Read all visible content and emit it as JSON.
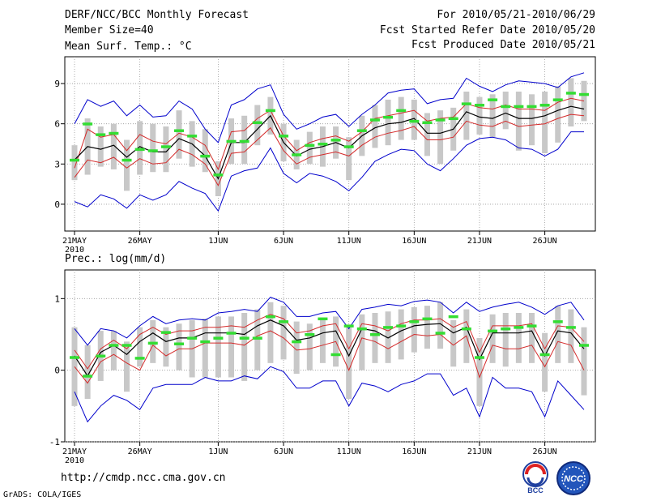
{
  "header": {
    "title": "DERF/NCC/BCC Monthly Forecast",
    "member_size": "Member Size=40",
    "forecast_range": "For 2010/05/21-2010/06/29",
    "start_date": "Fcst Started Refer Date 2010/05/20",
    "produced_date": "Fcst Produced Date 2010/05/21"
  },
  "footer": {
    "url": "http://cmdp.ncc.cma.gov.cn",
    "grads_credit": "GrADS: COLA/IGES",
    "logo_left_text": "BCC",
    "logo_right_text": "NCC"
  },
  "colors": {
    "envelope": "#0000cc",
    "spread": "#d42a2a",
    "mean": "#000000",
    "box": "#c8c8c8",
    "marker": "#33dd33"
  },
  "chart_data": [
    {
      "type": "line",
      "title": "Mean Surf. Temp.: °C",
      "x_tick_labels": [
        "21MAY",
        "26MAY",
        "1JUN",
        "6JUN",
        "11JUN",
        "16JUN",
        "21JUN",
        "26JUN"
      ],
      "x_year_label": "2010",
      "days": 40,
      "ylim": [
        -2,
        11
      ],
      "yticks": [
        0,
        3,
        6,
        9
      ],
      "series": [
        {
          "name": "max",
          "values": [
            6.0,
            7.8,
            7.3,
            7.7,
            6.6,
            7.4,
            6.5,
            6.6,
            7.7,
            7.1,
            5.6,
            4.6,
            7.4,
            7.8,
            8.6,
            8.9,
            6.7,
            5.6,
            6.0,
            6.5,
            6.7,
            5.8,
            6.7,
            7.4,
            8.3,
            8.5,
            8.6,
            7.5,
            7.8,
            7.9,
            9.4,
            8.8,
            8.4,
            8.9,
            9.2,
            9.1,
            9.0,
            8.7,
            9.5,
            9.8
          ]
        },
        {
          "name": "upper",
          "values": [
            2.7,
            5.6,
            5.0,
            5.2,
            4.0,
            5.2,
            4.7,
            4.5,
            5.3,
            5.0,
            4.4,
            2.6,
            5.4,
            5.5,
            6.4,
            7.0,
            5.1,
            4.0,
            4.6,
            4.9,
            5.1,
            4.7,
            5.4,
            6.4,
            6.6,
            6.8,
            7.0,
            6.2,
            6.4,
            6.5,
            7.5,
            7.2,
            7.1,
            7.4,
            7.1,
            7.1,
            7.0,
            7.6,
            7.9,
            7.7
          ]
        },
        {
          "name": "mean",
          "values": [
            3.3,
            4.3,
            4.1,
            4.4,
            3.5,
            4.3,
            3.9,
            3.9,
            4.9,
            4.5,
            3.6,
            1.9,
            4.6,
            4.6,
            5.6,
            6.6,
            4.6,
            3.6,
            4.1,
            4.3,
            4.6,
            4.2,
            5.1,
            5.7,
            6.0,
            6.1,
            6.4,
            5.3,
            5.3,
            5.6,
            6.9,
            6.5,
            6.4,
            6.8,
            6.4,
            6.4,
            6.6,
            7.0,
            7.3,
            7.1
          ]
        },
        {
          "name": "lower",
          "values": [
            2.0,
            3.3,
            3.1,
            3.5,
            2.7,
            3.4,
            3.0,
            3.1,
            4.1,
            3.7,
            3.0,
            1.4,
            3.8,
            3.9,
            4.8,
            5.7,
            4.0,
            3.0,
            3.5,
            3.7,
            3.9,
            3.6,
            4.4,
            5.0,
            5.3,
            5.5,
            5.8,
            4.8,
            4.8,
            5.0,
            6.2,
            5.9,
            5.8,
            6.2,
            5.8,
            5.9,
            6.0,
            6.4,
            6.7,
            6.6
          ]
        },
        {
          "name": "min",
          "values": [
            0.2,
            -0.2,
            0.7,
            0.4,
            -0.3,
            0.7,
            0.3,
            0.7,
            1.7,
            1.2,
            0.8,
            -0.5,
            2.1,
            2.5,
            2.7,
            4.2,
            2.3,
            1.6,
            2.3,
            2.1,
            1.7,
            1.0,
            2.0,
            3.2,
            3.7,
            4.1,
            4.0,
            3.0,
            2.5,
            3.4,
            4.4,
            4.9,
            5.0,
            4.8,
            4.2,
            4.1,
            3.6,
            4.1,
            5.4,
            5.4
          ]
        },
        {
          "name": "box_top",
          "values": [
            4.4,
            6.4,
            5.8,
            6.0,
            4.8,
            6.2,
            6.0,
            5.8,
            7.0,
            6.2,
            5.6,
            3.2,
            6.4,
            6.6,
            7.4,
            8.0,
            6.0,
            4.8,
            5.4,
            5.8,
            5.8,
            5.0,
            6.6,
            7.4,
            7.8,
            8.0,
            7.8,
            6.8,
            7.0,
            7.2,
            8.4,
            8.0,
            8.2,
            8.4,
            8.4,
            8.2,
            8.4,
            8.8,
            9.4,
            9.2
          ]
        },
        {
          "name": "box_bottom",
          "values": [
            1.8,
            2.2,
            2.8,
            2.6,
            1.0,
            2.2,
            2.4,
            2.4,
            3.4,
            2.8,
            2.4,
            0.6,
            3.0,
            3.0,
            4.4,
            5.2,
            3.2,
            2.6,
            3.0,
            2.8,
            3.4,
            1.8,
            3.6,
            4.2,
            4.4,
            4.8,
            4.8,
            3.6,
            3.0,
            4.0,
            4.8,
            5.2,
            5.0,
            5.6,
            4.0,
            4.4,
            3.8,
            4.6,
            5.8,
            6.2
          ]
        },
        {
          "name": "markers",
          "values": [
            3.3,
            6.0,
            5.2,
            5.3,
            3.3,
            4.1,
            4.0,
            4.3,
            5.5,
            5.1,
            3.6,
            2.2,
            4.7,
            4.7,
            6.1,
            7.0,
            5.1,
            3.7,
            4.4,
            4.5,
            4.8,
            4.3,
            5.5,
            6.3,
            6.5,
            7.0,
            6.2,
            6.1,
            6.3,
            6.4,
            7.5,
            7.4,
            7.8,
            7.3,
            7.3,
            7.3,
            7.4,
            7.8,
            8.3,
            8.2
          ]
        }
      ]
    },
    {
      "type": "line",
      "title": "Prec.: log(mm/d)",
      "x_tick_labels": [
        "21MAY",
        "26MAY",
        "1JUN",
        "6JUN",
        "11JUN",
        "16JUN",
        "21JUN",
        "26JUN"
      ],
      "x_year_label": "2010",
      "days": 40,
      "ylim": [
        -1,
        1.4
      ],
      "yticks": [
        -1,
        0,
        1
      ],
      "series": [
        {
          "name": "max",
          "values": [
            0.58,
            0.35,
            0.58,
            0.55,
            0.45,
            0.62,
            0.75,
            0.65,
            0.7,
            0.72,
            0.7,
            0.8,
            0.82,
            0.85,
            0.82,
            1.02,
            0.95,
            0.75,
            0.75,
            0.8,
            0.82,
            0.58,
            0.85,
            0.88,
            0.92,
            0.9,
            0.96,
            0.98,
            0.95,
            0.8,
            0.95,
            0.82,
            0.88,
            0.92,
            0.95,
            0.88,
            0.78,
            0.9,
            0.95,
            0.7
          ]
        },
        {
          "name": "upper",
          "values": [
            0.28,
            0.02,
            0.3,
            0.42,
            0.3,
            0.5,
            0.6,
            0.5,
            0.55,
            0.55,
            0.6,
            0.6,
            0.62,
            0.6,
            0.7,
            0.78,
            0.72,
            0.52,
            0.55,
            0.62,
            0.65,
            0.3,
            0.65,
            0.62,
            0.55,
            0.65,
            0.7,
            0.7,
            0.72,
            0.6,
            0.68,
            0.25,
            0.62,
            0.62,
            0.62,
            0.65,
            0.3,
            0.62,
            0.6,
            0.4
          ]
        },
        {
          "name": "mean",
          "values": [
            0.2,
            -0.08,
            0.25,
            0.35,
            0.22,
            0.4,
            0.52,
            0.4,
            0.45,
            0.45,
            0.52,
            0.52,
            0.52,
            0.5,
            0.62,
            0.7,
            0.62,
            0.42,
            0.45,
            0.52,
            0.55,
            0.2,
            0.58,
            0.55,
            0.45,
            0.55,
            0.62,
            0.64,
            0.65,
            0.52,
            0.6,
            0.15,
            0.52,
            0.52,
            0.52,
            0.55,
            0.2,
            0.55,
            0.52,
            0.3
          ]
        },
        {
          "name": "lower",
          "values": [
            0.05,
            -0.18,
            0.12,
            0.22,
            0.1,
            0.0,
            0.35,
            0.2,
            0.3,
            0.3,
            0.38,
            0.38,
            0.38,
            0.35,
            0.48,
            0.55,
            0.45,
            0.28,
            0.3,
            0.35,
            0.4,
            0.0,
            0.45,
            0.4,
            0.3,
            0.4,
            0.5,
            0.48,
            0.5,
            0.35,
            0.48,
            -0.1,
            0.35,
            0.3,
            0.3,
            0.35,
            0.05,
            0.4,
            0.35,
            0.0
          ]
        },
        {
          "name": "min",
          "values": [
            -0.3,
            -0.72,
            -0.5,
            -0.35,
            -0.42,
            -0.55,
            -0.25,
            -0.2,
            -0.2,
            -0.2,
            -0.1,
            -0.15,
            -0.15,
            -0.08,
            -0.12,
            0.05,
            -0.02,
            -0.25,
            -0.25,
            -0.15,
            -0.15,
            -0.5,
            -0.18,
            -0.22,
            -0.3,
            -0.2,
            -0.15,
            -0.05,
            -0.05,
            -0.35,
            -0.25,
            -0.65,
            -0.1,
            -0.25,
            -0.25,
            -0.3,
            -0.65,
            -0.15,
            -0.35,
            -0.55
          ]
        },
        {
          "name": "box_top",
          "values": [
            0.6,
            0.35,
            0.55,
            0.55,
            0.4,
            0.6,
            0.7,
            0.6,
            0.65,
            0.7,
            0.72,
            0.75,
            0.75,
            0.8,
            0.85,
            0.95,
            0.9,
            0.68,
            0.65,
            0.7,
            0.75,
            0.6,
            0.78,
            0.8,
            0.82,
            0.85,
            0.88,
            0.9,
            0.95,
            0.7,
            0.85,
            0.45,
            0.78,
            0.8,
            0.8,
            0.8,
            0.52,
            0.9,
            0.85,
            0.6
          ]
        },
        {
          "name": "box_bottom",
          "values": [
            -0.5,
            -0.4,
            -0.15,
            0.0,
            -0.3,
            0.05,
            0.1,
            0.05,
            0.0,
            -0.1,
            -0.1,
            -0.1,
            -0.1,
            -0.15,
            0.0,
            0.1,
            0.15,
            -0.05,
            0.0,
            0.1,
            0.05,
            -0.4,
            0.0,
            0.1,
            0.1,
            0.15,
            0.25,
            0.3,
            0.3,
            0.05,
            0.1,
            -0.5,
            0.1,
            0.05,
            0.1,
            0.1,
            -0.3,
            0.1,
            0.1,
            -0.35
          ]
        },
        {
          "name": "markers",
          "values": [
            0.18,
            -0.08,
            0.2,
            0.35,
            0.35,
            0.17,
            0.38,
            0.53,
            0.37,
            0.45,
            0.4,
            0.45,
            0.52,
            0.45,
            0.45,
            0.75,
            0.68,
            0.4,
            0.5,
            0.72,
            0.22,
            0.62,
            0.58,
            0.5,
            0.6,
            0.62,
            0.68,
            0.72,
            0.52,
            0.75,
            0.58,
            0.18,
            0.55,
            0.58,
            0.6,
            0.62,
            0.22,
            0.68,
            0.6,
            0.35
          ]
        }
      ]
    }
  ]
}
